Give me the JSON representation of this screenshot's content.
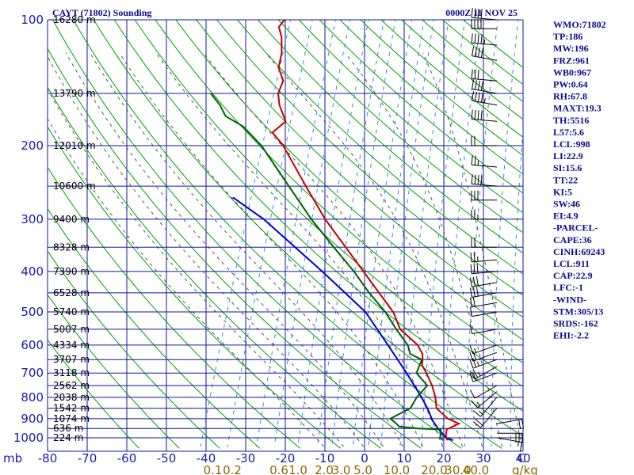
{
  "header": {
    "title": "CAYT (71802) Sounding",
    "time": "0000Z 11 NOV 25"
  },
  "indices": [
    "WMO:71802",
    "TP:186",
    "MW:196",
    "FRZ:961",
    "WB0:967",
    "PW:0.64",
    "RH:67.8",
    "MAXT:19.3",
    "TH:5516",
    "L57:5.6",
    "LCL:998",
    "LI:22.9",
    "SI:15.6",
    "TT:22",
    "KI:5",
    "SW:46",
    "EI:4.9",
    "-PARCEL-",
    "CAPE:36",
    "CINH:69243",
    "LCL:911",
    "CAP:22.9",
    "LFC:-1",
    "-WIND-",
    "STM:305/13",
    "SRDS:-162",
    "EHI:-2.2"
  ],
  "colors": {
    "isobar": "#1414a0",
    "dry_adiabat": "#00a000",
    "moist_adiabat": "#555555",
    "mixing_ratio": "#3a8ad8",
    "temperature": "#c00000",
    "dewpoint": "#006000",
    "parcel": "#0000d0"
  },
  "chart_data": {
    "type": "line",
    "diagram": "skew-T log-P",
    "pressure_unit_label": "mb",
    "x_unit_label": "C",
    "mixing_ratio_unit_label": "g/kg",
    "pressure_levels": [
      100,
      200,
      300,
      400,
      500,
      600,
      700,
      800,
      900,
      1000
    ],
    "temperature_ticks": [
      -80,
      -70,
      -60,
      -50,
      -40,
      -30,
      -20,
      -10,
      0,
      10,
      20,
      30,
      40
    ],
    "temperature_tick_labels": [
      "-80",
      "-70",
      "-60",
      "-50",
      "-40",
      "-30",
      "-20",
      "-10",
      "0",
      "10",
      "20",
      "30",
      "40"
    ],
    "mixing_ratio_labels": [
      {
        "label": "0.1",
        "temp": -38.9
      },
      {
        "label": "0.2",
        "temp": -34.0
      },
      {
        "label": "0.6",
        "temp": -22.2
      },
      {
        "label": "1.0",
        "temp": -17.4
      },
      {
        "label": "2.0",
        "temp": -10.8
      },
      {
        "label": "3.0",
        "temp": -6.5
      },
      {
        "label": "5.0",
        "temp": -1.0
      },
      {
        "label": "10.0",
        "temp": 7.5
      },
      {
        "label": "20.0",
        "temp": 17.0
      },
      {
        "label": "30.0",
        "temp": 23.0
      },
      {
        "label": "40.0",
        "temp": 27.5
      }
    ],
    "height_labels": [
      {
        "label": "16280 m",
        "p": 100
      },
      {
        "label": "13790 m",
        "p": 150
      },
      {
        "label": "12010 m",
        "p": 200
      },
      {
        "label": "10600 m",
        "p": 250
      },
      {
        "label": "9400 m",
        "p": 300
      },
      {
        "label": "8328 m",
        "p": 350
      },
      {
        "label": "7390 m",
        "p": 400
      },
      {
        "label": "6528 m",
        "p": 450
      },
      {
        "label": "5740 m",
        "p": 500
      },
      {
        "label": "5007 m",
        "p": 550
      },
      {
        "label": "4334 m",
        "p": 600
      },
      {
        "label": "3707 m",
        "p": 650
      },
      {
        "label": "3118 m",
        "p": 700
      },
      {
        "label": "2562 m",
        "p": 750
      },
      {
        "label": "2038 m",
        "p": 800
      },
      {
        "label": "1542 m",
        "p": 850
      },
      {
        "label": "1074 m",
        "p": 900
      },
      {
        "label": "636 m",
        "p": 950
      },
      {
        "label": "224 m",
        "p": 1000
      }
    ],
    "temperature": [
      {
        "p": 1014,
        "t": 20.6
      },
      {
        "p": 1000,
        "t": 20.0
      },
      {
        "p": 980,
        "t": 19.6
      },
      {
        "p": 955,
        "t": 19.3
      },
      {
        "p": 925,
        "t": 21.8
      },
      {
        "p": 900,
        "t": 18.5
      },
      {
        "p": 850,
        "t": 14.6
      },
      {
        "p": 800,
        "t": 13.2
      },
      {
        "p": 750,
        "t": 11.2
      },
      {
        "p": 700,
        "t": 8.5
      },
      {
        "p": 670,
        "t": 6.6
      },
      {
        "p": 650,
        "t": 6.2
      },
      {
        "p": 630,
        "t": 5.6
      },
      {
        "p": 600,
        "t": 3.5
      },
      {
        "p": 550,
        "t": -2.5
      },
      {
        "p": 500,
        "t": -6.0
      },
      {
        "p": 450,
        "t": -11.5
      },
      {
        "p": 400,
        "t": -17.6
      },
      {
        "p": 350,
        "t": -24.5
      },
      {
        "p": 300,
        "t": -32.5
      },
      {
        "p": 250,
        "t": -40.7
      },
      {
        "p": 200,
        "t": -50.5
      },
      {
        "p": 186,
        "t": -54.5
      },
      {
        "p": 175,
        "t": -52.3
      },
      {
        "p": 160,
        "t": -55.5
      },
      {
        "p": 150,
        "t": -57.0
      },
      {
        "p": 140,
        "t": -57.0
      },
      {
        "p": 130,
        "t": -59.5
      },
      {
        "p": 120,
        "t": -60.2
      },
      {
        "p": 110,
        "t": -61.8
      },
      {
        "p": 104,
        "t": -63.5
      },
      {
        "p": 100,
        "t": -62.8
      }
    ],
    "dewpoint": [
      {
        "p": 1014,
        "t": 19.5
      },
      {
        "p": 1000,
        "t": 18.5
      },
      {
        "p": 980,
        "t": 18.2
      },
      {
        "p": 955,
        "t": 17.8
      },
      {
        "p": 950,
        "t": 12.0
      },
      {
        "p": 940,
        "t": 7.0
      },
      {
        "p": 925,
        "t": 6.0
      },
      {
        "p": 900,
        "t": 4.0
      },
      {
        "p": 850,
        "t": 8.0
      },
      {
        "p": 820,
        "t": 8.3
      },
      {
        "p": 800,
        "t": 8.5
      },
      {
        "p": 750,
        "t": 10.0
      },
      {
        "p": 700,
        "t": 6.0
      },
      {
        "p": 650,
        "t": 6.0
      },
      {
        "p": 630,
        "t": 2.5
      },
      {
        "p": 600,
        "t": 1.0
      },
      {
        "p": 550,
        "t": -3.5
      },
      {
        "p": 500,
        "t": -8.0
      },
      {
        "p": 450,
        "t": -14.0
      },
      {
        "p": 400,
        "t": -20.0
      },
      {
        "p": 350,
        "t": -27.5
      },
      {
        "p": 300,
        "t": -36.0
      },
      {
        "p": 250,
        "t": -45.0
      },
      {
        "p": 200,
        "t": -56.0
      },
      {
        "p": 180,
        "t": -62.5
      },
      {
        "p": 170,
        "t": -68.0
      },
      {
        "p": 160,
        "t": -70.5
      },
      {
        "p": 150,
        "t": -74.0
      }
    ],
    "parcel": [
      {
        "p": 1014,
        "t": 22.0
      },
      {
        "p": 1000,
        "t": 20.0
      },
      {
        "p": 950,
        "t": 17.0
      },
      {
        "p": 911,
        "t": 14.9
      },
      {
        "p": 850,
        "t": 12.3
      },
      {
        "p": 800,
        "t": 9.7
      },
      {
        "p": 700,
        "t": 3.5
      },
      {
        "p": 600,
        "t": -4.0
      },
      {
        "p": 500,
        "t": -13.0
      },
      {
        "p": 400,
        "t": -28.0
      },
      {
        "p": 300,
        "t": -48.0
      },
      {
        "p": 266,
        "t": -58.0
      }
    ],
    "wind_barbs": [
      {
        "p": 1000,
        "dir": 100,
        "spd": 15
      },
      {
        "p": 975,
        "dir": 90,
        "spd": 30
      },
      {
        "p": 925,
        "dir": 80,
        "spd": 20
      },
      {
        "p": 850,
        "dir": 220,
        "spd": 20
      },
      {
        "p": 800,
        "dir": 220,
        "spd": 15
      },
      {
        "p": 775,
        "dir": 230,
        "spd": 15
      },
      {
        "p": 750,
        "dir": 240,
        "spd": 10
      },
      {
        "p": 700,
        "dir": 250,
        "spd": 20
      },
      {
        "p": 675,
        "dir": 240,
        "spd": 25
      },
      {
        "p": 650,
        "dir": 250,
        "spd": 25
      },
      {
        "p": 625,
        "dir": 250,
        "spd": 20
      },
      {
        "p": 600,
        "dir": 250,
        "spd": 15
      },
      {
        "p": 550,
        "dir": 260,
        "spd": 10
      },
      {
        "p": 500,
        "dir": 260,
        "spd": 10
      },
      {
        "p": 475,
        "dir": 260,
        "spd": 20
      },
      {
        "p": 450,
        "dir": 260,
        "spd": 30
      },
      {
        "p": 425,
        "dir": 260,
        "spd": 30
      },
      {
        "p": 400,
        "dir": 265,
        "spd": 30
      },
      {
        "p": 375,
        "dir": 265,
        "spd": 25
      },
      {
        "p": 350,
        "dir": 270,
        "spd": 20
      },
      {
        "p": 300,
        "dir": 270,
        "spd": 25
      },
      {
        "p": 270,
        "dir": 270,
        "spd": 30
      },
      {
        "p": 250,
        "dir": 275,
        "spd": 40
      },
      {
        "p": 225,
        "dir": 275,
        "spd": 25
      },
      {
        "p": 200,
        "dir": 270,
        "spd": 20
      },
      {
        "p": 175,
        "dir": 275,
        "spd": 40
      },
      {
        "p": 160,
        "dir": 280,
        "spd": 45
      },
      {
        "p": 150,
        "dir": 280,
        "spd": 40
      },
      {
        "p": 140,
        "dir": 275,
        "spd": 30
      },
      {
        "p": 125,
        "dir": 280,
        "spd": 40
      },
      {
        "p": 115,
        "dir": 275,
        "spd": 45
      },
      {
        "p": 105,
        "dir": 270,
        "spd": 40
      },
      {
        "p": 100,
        "dir": 275,
        "spd": 40
      }
    ]
  }
}
